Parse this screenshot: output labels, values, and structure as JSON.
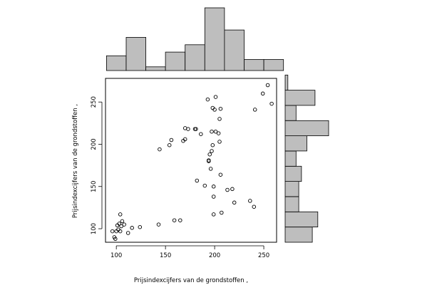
{
  "chart_data": {
    "type": "scatter",
    "title": "",
    "xlabel": "Prijsindexcijfers van de grondstoffen ,",
    "ylabel": "Prijsindexcijfers van de grondstoffen ,",
    "xlim": [
      89,
      263
    ],
    "ylim": [
      84,
      278
    ],
    "x_ticks": [
      100,
      150,
      200,
      250
    ],
    "y_ticks": [
      100,
      150,
      200,
      250
    ],
    "grid": false,
    "points": [
      [
        96,
        97
      ],
      [
        98,
        90
      ],
      [
        99,
        88
      ],
      [
        100,
        97
      ],
      [
        101,
        104
      ],
      [
        102,
        99
      ],
      [
        103,
        106
      ],
      [
        104,
        97
      ],
      [
        105,
        103
      ],
      [
        106,
        109
      ],
      [
        104,
        117
      ],
      [
        108,
        105
      ],
      [
        112,
        95
      ],
      [
        116,
        101
      ],
      [
        124,
        102
      ],
      [
        143,
        105
      ],
      [
        159,
        110
      ],
      [
        165,
        110
      ],
      [
        144,
        194
      ],
      [
        154,
        199
      ],
      [
        156,
        205
      ],
      [
        168,
        204
      ],
      [
        170,
        206
      ],
      [
        170,
        219
      ],
      [
        173,
        218
      ],
      [
        180,
        218
      ],
      [
        181,
        218
      ],
      [
        182,
        157
      ],
      [
        186,
        212
      ],
      [
        190,
        151
      ],
      [
        193,
        253
      ],
      [
        194,
        181
      ],
      [
        194,
        180
      ],
      [
        195,
        188
      ],
      [
        196,
        171
      ],
      [
        197,
        192
      ],
      [
        197,
        215
      ],
      [
        198,
        199
      ],
      [
        198,
        243
      ],
      [
        199,
        150
      ],
      [
        199,
        138
      ],
      [
        199,
        117
      ],
      [
        200,
        241
      ],
      [
        201,
        256
      ],
      [
        201,
        215
      ],
      [
        204,
        213
      ],
      [
        205,
        203
      ],
      [
        205,
        230
      ],
      [
        206,
        242
      ],
      [
        206,
        164
      ],
      [
        207,
        119
      ],
      [
        213,
        146
      ],
      [
        218,
        147
      ],
      [
        220,
        131
      ],
      [
        236,
        133
      ],
      [
        240,
        126
      ],
      [
        241,
        241
      ],
      [
        249,
        260
      ],
      [
        254,
        270
      ],
      [
        258,
        248
      ]
    ],
    "x_hist": {
      "breaks": [
        90,
        110,
        130,
        150,
        170,
        190,
        210,
        230,
        250,
        270
      ],
      "counts": [
        4,
        9,
        1,
        5,
        7,
        17,
        11,
        3,
        3
      ]
    },
    "y_hist": {
      "breaks": [
        84,
        102,
        120,
        138,
        156,
        174,
        192,
        210,
        228,
        246,
        264,
        282
      ],
      "counts": [
        10,
        12,
        5,
        5,
        6,
        4,
        8,
        16,
        4,
        11,
        1
      ]
    }
  }
}
